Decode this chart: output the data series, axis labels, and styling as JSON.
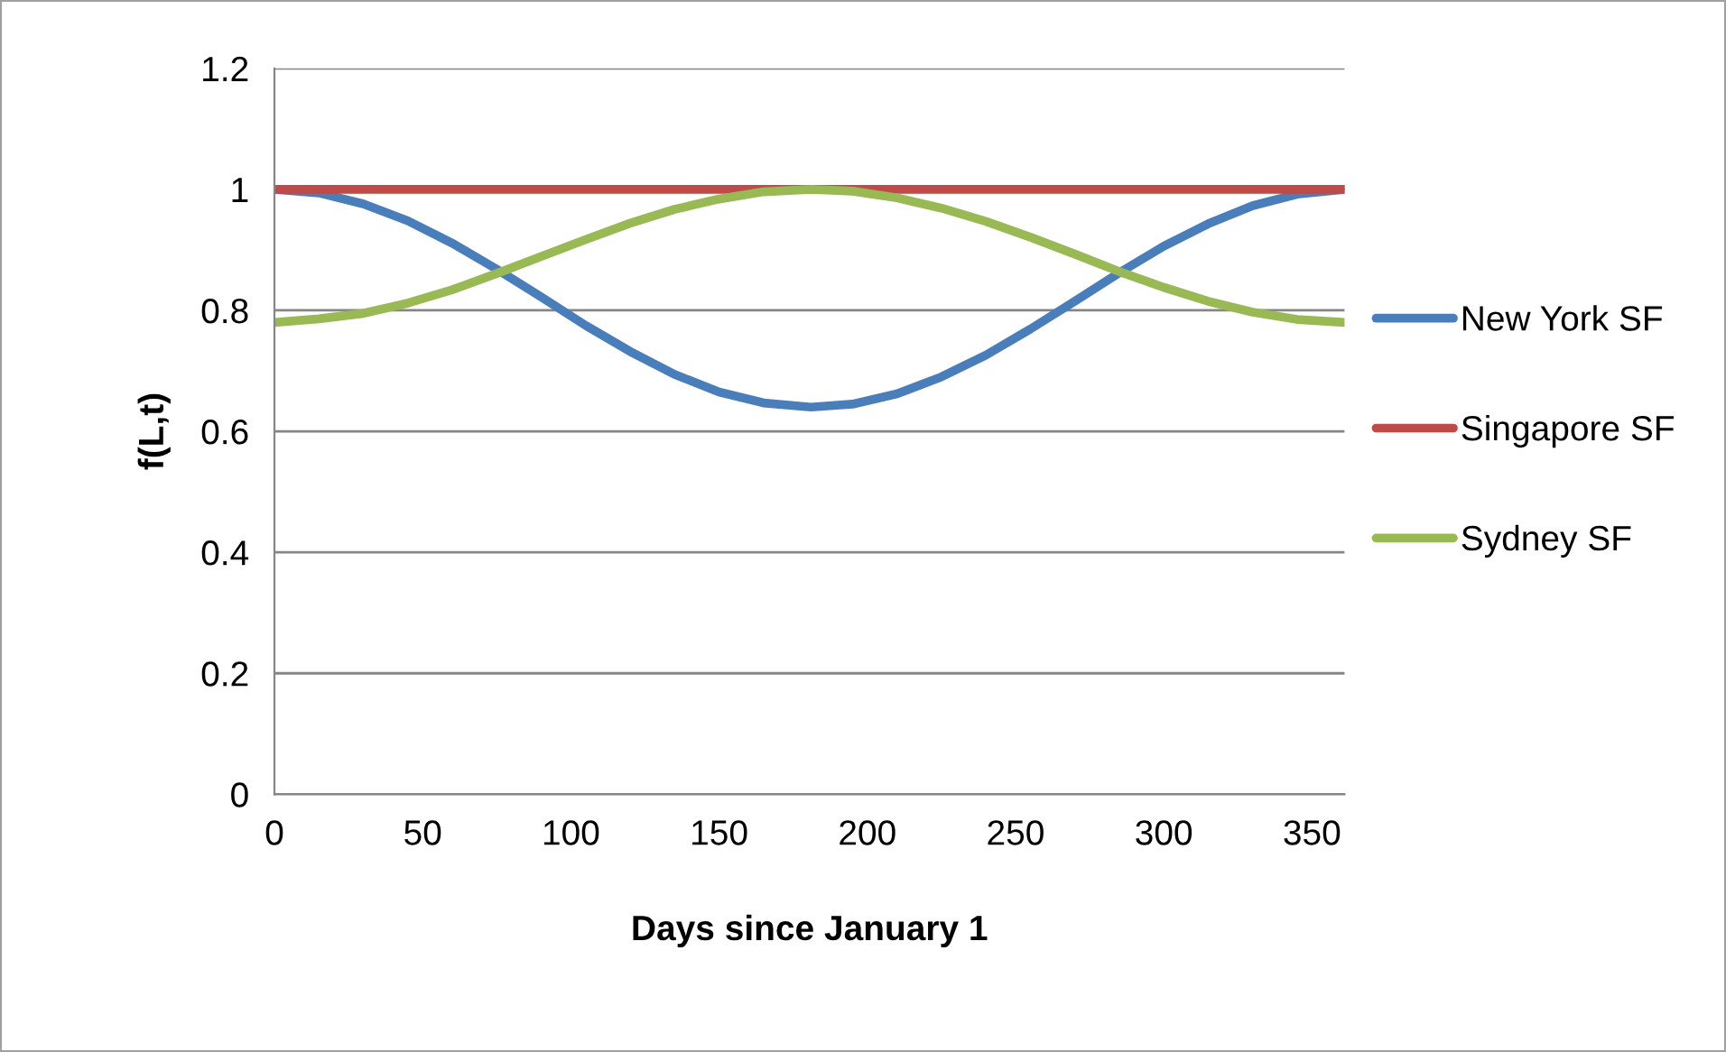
{
  "chart_data": {
    "type": "line",
    "xlabel": "Days since January 1",
    "ylabel": "f(L,t)",
    "x": [
      0,
      15,
      30,
      45,
      60,
      75,
      90,
      105,
      120,
      135,
      150,
      165,
      181,
      195,
      210,
      225,
      240,
      255,
      270,
      285,
      300,
      315,
      330,
      345,
      361
    ],
    "series": [
      {
        "name": "New York SF",
        "color": "#4a7ebb",
        "values": [
          1.0,
          0.994,
          0.976,
          0.948,
          0.911,
          0.868,
          0.822,
          0.775,
          0.732,
          0.694,
          0.665,
          0.647,
          0.64,
          0.645,
          0.662,
          0.69,
          0.726,
          0.769,
          0.815,
          0.862,
          0.906,
          0.943,
          0.973,
          0.992,
          1.0
        ]
      },
      {
        "name": "Singapore SF",
        "color": "#be4b48",
        "values": [
          1,
          1,
          1,
          1,
          1,
          1,
          1,
          1,
          1,
          1,
          1,
          1,
          1,
          1,
          1,
          1,
          1,
          1,
          1,
          1,
          1,
          1,
          1,
          1,
          1
        ]
      },
      {
        "name": "Sydney SF",
        "color": "#98b954",
        "values": [
          0.78,
          0.786,
          0.795,
          0.812,
          0.834,
          0.861,
          0.889,
          0.917,
          0.944,
          0.967,
          0.984,
          0.996,
          1.0,
          0.997,
          0.986,
          0.969,
          0.947,
          0.921,
          0.893,
          0.864,
          0.838,
          0.815,
          0.797,
          0.785,
          0.78
        ]
      }
    ],
    "xlim": [
      0,
      361
    ],
    "xticks": [
      0,
      50,
      100,
      150,
      200,
      250,
      300,
      350
    ],
    "ylim": [
      0,
      1.2
    ],
    "yticks": [
      0,
      0.2,
      0.4,
      0.6,
      0.8,
      1,
      1.2
    ],
    "grid": "y",
    "legend": "right",
    "marker": "none",
    "line_style": "solid"
  }
}
